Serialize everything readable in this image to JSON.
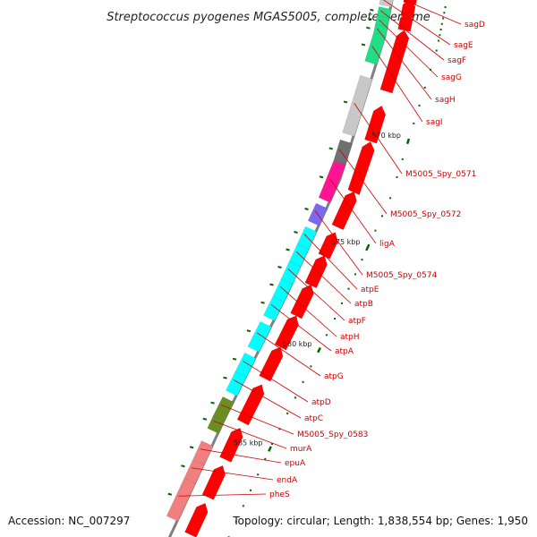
{
  "title": "Streptococcus pyogenes MGAS5005, complete genome",
  "accession": "Accession: NC_007297",
  "summary": "Topology: circular; Length: 1,838,554 bp; Genes: 1,950",
  "colors": {
    "forward_cds": "#ff0000",
    "reverse_red": "#ee0000",
    "pink": "#f08080",
    "gray": "#c8c8c8",
    "dark_gray": "#707070",
    "green": "#22dd88",
    "magenta": "#ff1493",
    "purple": "#7b68ee",
    "cyan": "#00ffff",
    "olive": "#6b8e23",
    "tick": "#006400",
    "backbone": "#808080",
    "label": "#cc0000"
  },
  "ticks": [
    {
      "kbp": 570,
      "label": "570 kbp"
    },
    {
      "kbp": 575,
      "label": "575 kbp"
    },
    {
      "kbp": 580,
      "label": "580 kbp"
    },
    {
      "kbp": 585,
      "label": "585 kbp"
    }
  ],
  "genes": [
    {
      "label": "sagD",
      "strand": "outer",
      "color": "forward_cds"
    },
    {
      "label": "sagE",
      "strand": "inner",
      "color": "gray"
    },
    {
      "label": "sagF",
      "strand": "inner",
      "color": "green"
    },
    {
      "label": "sagG",
      "strand": "inner",
      "color": "green"
    },
    {
      "label": "sagH",
      "strand": "inner",
      "color": "green"
    },
    {
      "label": "sagI",
      "strand": "inner",
      "color": "green"
    },
    {
      "label": "M5005_Spy_0571",
      "strand": "inner",
      "color": "gray"
    },
    {
      "label": "M5005_Spy_0572",
      "strand": "inner",
      "color": "dark_gray"
    },
    {
      "label": "ligA",
      "strand": "inner",
      "color": "magenta"
    },
    {
      "label": "M5005_Spy_0574",
      "strand": "inner",
      "color": "purple"
    },
    {
      "label": "atpE",
      "strand": "inner",
      "color": "cyan"
    },
    {
      "label": "atpB",
      "strand": "inner",
      "color": "cyan"
    },
    {
      "label": "atpF",
      "strand": "inner",
      "color": "cyan"
    },
    {
      "label": "atpH",
      "strand": "inner",
      "color": "cyan"
    },
    {
      "label": "atpA",
      "strand": "inner",
      "color": "cyan"
    },
    {
      "label": "atpG",
      "strand": "inner",
      "color": "cyan"
    },
    {
      "label": "atpD",
      "strand": "inner",
      "color": "cyan"
    },
    {
      "label": "atpC",
      "strand": "inner",
      "color": "cyan"
    },
    {
      "label": "M5005_Spy_0583",
      "strand": "inner",
      "color": "olive"
    },
    {
      "label": "murA",
      "strand": "inner",
      "color": "olive"
    },
    {
      "label": "epuA",
      "strand": "inner",
      "color": "pink"
    },
    {
      "label": "endA",
      "strand": "inner",
      "color": "pink"
    },
    {
      "label": "pheS",
      "strand": "inner",
      "color": "pink"
    }
  ]
}
